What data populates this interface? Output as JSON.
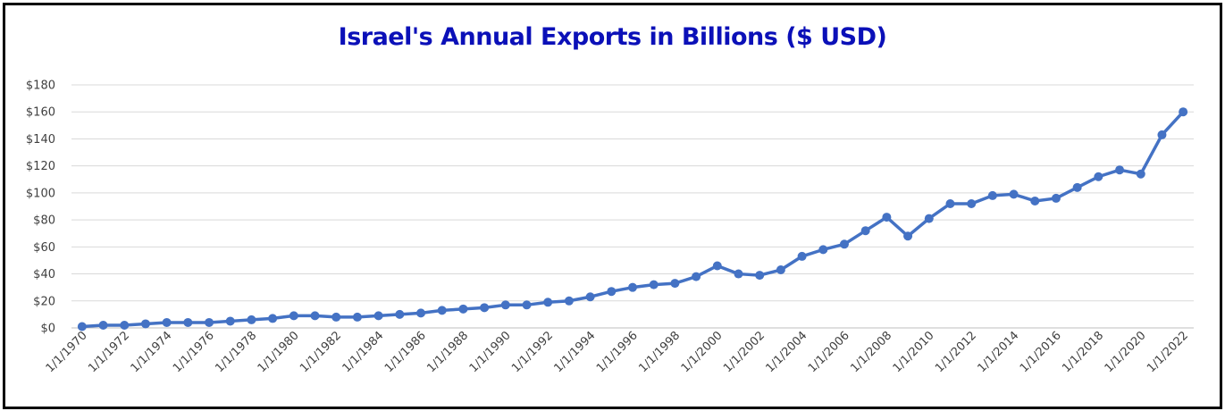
{
  "chart_data": {
    "type": "line",
    "title": "Israel's Annual Exports in Billions ($ USD)",
    "xlabel": "",
    "ylabel": "",
    "ylim": [
      0,
      180
    ],
    "grid": true,
    "legend": "none",
    "colors": {
      "title": "#0b10b8",
      "line": "#4472c4",
      "grid": "#d9d9d9",
      "axis": "#bfbfbf"
    },
    "y_ticks": [
      "$0",
      "$20",
      "$40",
      "$60",
      "$80",
      "$100",
      "$120",
      "$140",
      "$160",
      "$180"
    ],
    "x_tick_labels": [
      "1/1/1970",
      "1/1/1972",
      "1/1/1974",
      "1/1/1976",
      "1/1/1978",
      "1/1/1980",
      "1/1/1982",
      "1/1/1984",
      "1/1/1986",
      "1/1/1988",
      "1/1/1990",
      "1/1/1992",
      "1/1/1994",
      "1/1/1996",
      "1/1/1998",
      "1/1/2000",
      "1/1/2002",
      "1/1/2004",
      "1/1/2006",
      "1/1/2008",
      "1/1/2010",
      "1/1/2012",
      "1/1/2014",
      "1/1/2016",
      "1/1/2018",
      "1/1/2020",
      "1/1/2022"
    ],
    "series": [
      {
        "x": [
          "1/1/1970",
          "1/1/1971",
          "1/1/1972",
          "1/1/1973",
          "1/1/1974",
          "1/1/1975",
          "1/1/1976",
          "1/1/1977",
          "1/1/1978",
          "1/1/1979",
          "1/1/1980",
          "1/1/1981",
          "1/1/1982",
          "1/1/1983",
          "1/1/1984",
          "1/1/1985",
          "1/1/1986",
          "1/1/1987",
          "1/1/1988",
          "1/1/1989",
          "1/1/1990",
          "1/1/1991",
          "1/1/1992",
          "1/1/1993",
          "1/1/1994",
          "1/1/1995",
          "1/1/1996",
          "1/1/1997",
          "1/1/1998",
          "1/1/1999",
          "1/1/2000",
          "1/1/2001",
          "1/1/2002",
          "1/1/2003",
          "1/1/2004",
          "1/1/2005",
          "1/1/2006",
          "1/1/2007",
          "1/1/2008",
          "1/1/2009",
          "1/1/2010",
          "1/1/2011",
          "1/1/2012",
          "1/1/2013",
          "1/1/2014",
          "1/1/2015",
          "1/1/2016",
          "1/1/2017",
          "1/1/2018",
          "1/1/2019",
          "1/1/2020",
          "1/1/2021",
          "1/1/2022"
        ],
        "values": [
          1,
          2,
          2,
          3,
          4,
          4,
          4,
          5,
          6,
          7,
          9,
          9,
          8,
          8,
          9,
          10,
          11,
          13,
          14,
          15,
          17,
          17,
          19,
          20,
          23,
          27,
          30,
          32,
          33,
          38,
          46,
          40,
          39,
          43,
          53,
          58,
          62,
          72,
          82,
          68,
          81,
          92,
          92,
          98,
          99,
          94,
          96,
          104,
          112,
          117,
          114,
          143,
          160
        ]
      }
    ]
  }
}
